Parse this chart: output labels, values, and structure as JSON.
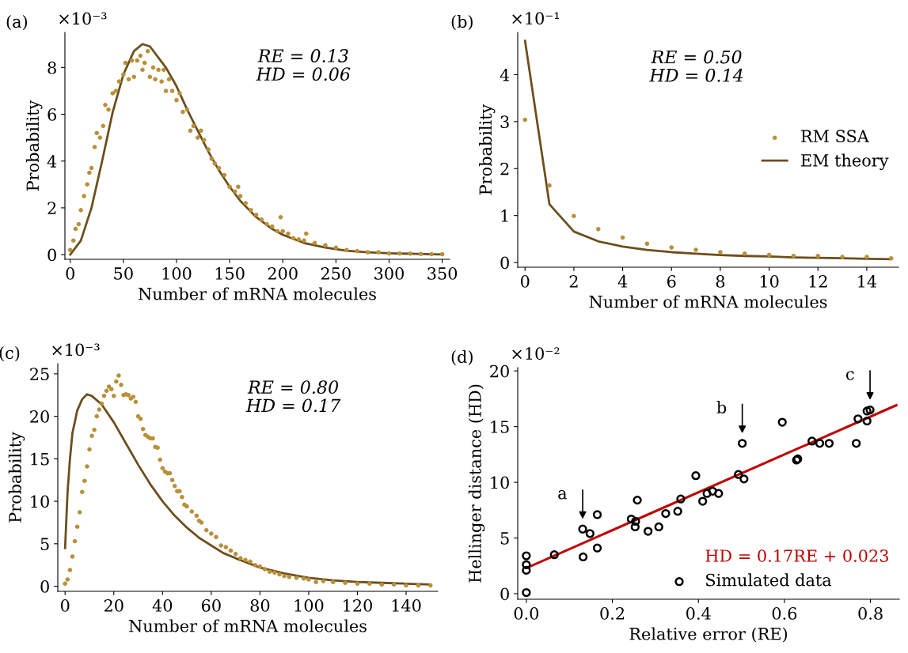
{
  "chart_data": [
    {
      "type": "scatter",
      "xlabel": "Number of mRNA molecules",
      "ylabel": "Probability",
      "annotations": [
        "(a)",
        "×10⁻³",
        "RE = 0.13\nHD = 0.06"
      ],
      "xlim": [
        -5,
        357
      ],
      "ylim": [
        -0.2,
        9.5
      ],
      "xticks": [
        0,
        50,
        100,
        150,
        200,
        250,
        300,
        350
      ],
      "yticks": [
        0,
        2,
        4,
        6,
        8
      ],
      "series": [
        {
          "marker": "circle",
          "color": "#b8903a",
          "x": [
            0,
            3,
            5,
            8,
            10,
            13,
            16,
            18,
            20,
            23,
            25,
            28,
            31,
            33,
            36,
            40,
            43,
            46,
            50,
            52,
            55,
            58,
            60,
            63,
            66,
            68,
            70,
            73,
            75,
            78,
            80,
            83,
            86,
            88,
            90,
            93,
            96,
            100,
            103,
            106,
            110,
            113,
            116,
            120,
            123,
            126,
            130,
            133,
            136,
            140,
            145,
            150,
            155,
            158,
            160,
            165,
            170,
            175,
            180,
            185,
            190,
            195,
            198,
            200,
            205,
            210,
            215,
            220,
            222,
            230,
            240,
            250,
            260,
            270,
            280,
            290,
            300,
            310,
            320,
            330,
            340,
            350
          ],
          "values": [
            0.2,
            0.6,
            1.1,
            1.3,
            1.9,
            2.5,
            3.0,
            3.5,
            3.7,
            4.6,
            5.2,
            5.0,
            5.5,
            6.4,
            6.2,
            6.9,
            7.0,
            7.4,
            7.7,
            8.2,
            7.5,
            8.3,
            7.6,
            8.3,
            8.5,
            7.9,
            8.2,
            8.7,
            7.6,
            8.0,
            7.5,
            7.9,
            7.4,
            7.9,
            7.0,
            7.5,
            7.0,
            6.6,
            6.9,
            6.1,
            6.2,
            5.3,
            5.5,
            5.0,
            5.3,
            4.9,
            4.5,
            4.1,
            3.9,
            3.7,
            3.4,
            2.9,
            2.7,
            2.9,
            2.5,
            2.2,
            1.9,
            1.7,
            1.5,
            1.3,
            1.2,
            1.0,
            1.6,
            1.0,
            0.9,
            0.7,
            0.65,
            0.6,
            0.9,
            0.5,
            0.4,
            0.3,
            0.2,
            0.15,
            0.1,
            0.1,
            0.05,
            0.05,
            0.04,
            0.03,
            0.02,
            0.02
          ]
        },
        {
          "type": "line",
          "color": "#6b4f1d",
          "x": [
            0,
            10,
            20,
            30,
            40,
            50,
            60,
            68,
            75,
            90,
            100,
            110,
            120,
            130,
            140,
            150,
            160,
            175,
            190,
            200,
            220,
            240,
            260,
            280,
            300,
            325,
            350
          ],
          "values": [
            0,
            0.6,
            2.0,
            4.0,
            6.1,
            7.7,
            8.7,
            9.0,
            8.9,
            8.0,
            7.2,
            6.2,
            5.3,
            4.4,
            3.6,
            2.9,
            2.3,
            1.6,
            1.1,
            0.85,
            0.5,
            0.3,
            0.17,
            0.1,
            0.06,
            0.03,
            0.01
          ]
        }
      ]
    },
    {
      "type": "scatter",
      "xlabel": "Number of mRNA molecules",
      "ylabel": "Probability",
      "annotations": [
        "(b)",
        "×10⁻¹",
        "RE = 0.50\nHD = 0.14"
      ],
      "xlim": [
        -0.3,
        15.3
      ],
      "ylim": [
        -0.1,
        4.9
      ],
      "xticks": [
        0,
        2,
        4,
        6,
        8,
        10,
        12,
        14
      ],
      "yticks": [
        0,
        1,
        2,
        3,
        4
      ],
      "legend": "right",
      "series": [
        {
          "marker": "circle",
          "name": "RM SSA",
          "color": "#b8903a",
          "x": [
            0,
            1,
            2,
            3,
            4,
            5,
            6,
            7,
            8,
            9,
            10,
            11,
            12,
            13,
            14,
            15
          ],
          "values": [
            3.04,
            1.64,
            0.99,
            0.71,
            0.53,
            0.4,
            0.32,
            0.27,
            0.22,
            0.19,
            0.16,
            0.14,
            0.14,
            0.12,
            0.12,
            0.09
          ]
        },
        {
          "type": "line",
          "name": "EM theory",
          "color": "#6b4f1d",
          "x": [
            0,
            1,
            2,
            3,
            4,
            5,
            6,
            7,
            8,
            9,
            10,
            11,
            12,
            13,
            14,
            15
          ],
          "values": [
            4.72,
            1.24,
            0.66,
            0.45,
            0.34,
            0.27,
            0.22,
            0.19,
            0.16,
            0.14,
            0.13,
            0.11,
            0.1,
            0.09,
            0.08,
            0.07
          ]
        }
      ]
    },
    {
      "type": "scatter",
      "xlabel": "Number of mRNA molecules",
      "ylabel": "Probability",
      "annotations": [
        "(c)",
        "×10⁻³",
        "RE = 0.80\nHD = 0.17"
      ],
      "xlim": [
        -3,
        153
      ],
      "ylim": [
        -0.6,
        26.2
      ],
      "xticks": [
        0,
        20,
        40,
        60,
        80,
        100,
        120,
        140
      ],
      "yticks": [
        0,
        5,
        10,
        15,
        20,
        25
      ],
      "series": [
        {
          "marker": "circle",
          "color": "#b8903a",
          "x": [
            0,
            1,
            2,
            3,
            4,
            5,
            6,
            7,
            8,
            9,
            10,
            11,
            12,
            13,
            14,
            15,
            16,
            17,
            18,
            19,
            20,
            21,
            22,
            23,
            24,
            25,
            26,
            27,
            28,
            29,
            30,
            31,
            32,
            33,
            34,
            35,
            36,
            37,
            38,
            39,
            40,
            41,
            42,
            43,
            44,
            45,
            46,
            47,
            48,
            49,
            50,
            52,
            54,
            55,
            56,
            58,
            60,
            62,
            64,
            66,
            68,
            70,
            72,
            74,
            76,
            78,
            80,
            82,
            84,
            86,
            88,
            90,
            92,
            95,
            98,
            100,
            103,
            106,
            110,
            115,
            120,
            125,
            130,
            135,
            140,
            145,
            150
          ],
          "values": [
            0.3,
            0.8,
            1.9,
            3.5,
            5.3,
            7.0,
            8.7,
            11.1,
            12.4,
            14.1,
            16.1,
            17.7,
            18.4,
            20.0,
            20.8,
            21.5,
            22.4,
            23.0,
            23.5,
            23.2,
            22.4,
            24.1,
            24.8,
            23.7,
            22.5,
            22.6,
            22.5,
            22.1,
            22.3,
            21.7,
            20.0,
            19.7,
            18.5,
            17.8,
            17.6,
            17.4,
            17.4,
            16.4,
            16.3,
            14.9,
            13.9,
            13.5,
            13.3,
            13.3,
            12.5,
            11.8,
            11.2,
            11.2,
            10.5,
            9.6,
            9.4,
            8.8,
            8.3,
            7.7,
            7.5,
            6.6,
            6.2,
            5.8,
            4.8,
            4.6,
            4.2,
            3.8,
            3.3,
            3.1,
            2.9,
            2.5,
            2.3,
            2.0,
            1.7,
            1.6,
            1.4,
            1.2,
            1.1,
            1.0,
            0.9,
            0.8,
            0.5,
            0.6,
            0.5,
            0.4,
            0.3,
            0.3,
            0.2,
            0.2,
            0.1,
            0.1,
            0.1
          ]
        },
        {
          "type": "line",
          "color": "#6b4f1d",
          "x": [
            0,
            1,
            2,
            3,
            5,
            7,
            9,
            11,
            15,
            20,
            25,
            30,
            35,
            40,
            45,
            50,
            55,
            60,
            65,
            70,
            80,
            90,
            100,
            110,
            120,
            130,
            140,
            150
          ],
          "values": [
            4.5,
            11,
            15,
            18,
            20.7,
            22.0,
            22.6,
            22.4,
            21.4,
            19.3,
            16.8,
            14.3,
            12.0,
            10.0,
            8.3,
            6.9,
            5.7,
            4.8,
            3.9,
            3.3,
            2.2,
            1.5,
            1.0,
            0.7,
            0.5,
            0.4,
            0.3,
            0.2
          ]
        }
      ]
    },
    {
      "type": "scatter",
      "xlabel": "Relative error (RE)",
      "ylabel": "Hellinger distance (HD)",
      "annotations": [
        "(d)",
        "×10⁻²",
        {
          "text": "a",
          "x": 0.131,
          "y": 5.8
        },
        {
          "text": "b",
          "x": 0.502,
          "y": 13.5
        },
        {
          "text": "c",
          "x": 0.799,
          "y": 16.5
        }
      ],
      "xlim": [
        -0.02,
        0.867
      ],
      "ylim": [
        -0.5,
        20.3
      ],
      "xticks": [
        {
          "value": 0,
          "label": "0.0"
        },
        0.2,
        0.4,
        0.6,
        0.8
      ],
      "yticks": [
        0,
        5,
        10,
        15,
        20
      ],
      "legend": "bottom right",
      "series": [
        {
          "type": "line",
          "name": "HD = 0.17RE + 0.023",
          "color": "#c00000",
          "x": [
            0,
            0.86
          ],
          "values": [
            2.3,
            16.92
          ]
        },
        {
          "marker": "circle",
          "name": "Simulated data",
          "color": "#000000",
          "x": [
            0,
            0,
            0,
            0,
            0.065,
            0.131,
            0.148,
            0.132,
            0.165,
            0.165,
            0.244,
            0.254,
            0.253,
            0.258,
            0.283,
            0.308,
            0.324,
            0.352,
            0.359,
            0.394,
            0.41,
            0.42,
            0.433,
            0.447,
            0.493,
            0.506,
            0.502,
            0.595,
            0.628,
            0.631,
            0.664,
            0.682,
            0.704,
            0.771,
            0.767,
            0.792,
            0.792,
            0.799
          ],
          "values": [
            3.4,
            2.6,
            2.1,
            0.1,
            3.5,
            5.8,
            5.4,
            3.3,
            7.1,
            4.1,
            6.7,
            6.5,
            6.0,
            8.4,
            5.6,
            6.0,
            7.2,
            7.4,
            8.5,
            10.6,
            8.3,
            9.0,
            9.2,
            9.0,
            10.7,
            10.3,
            13.5,
            15.4,
            12.0,
            12.1,
            13.7,
            13.5,
            13.5,
            15.7,
            13.5,
            15.5,
            16.4,
            16.5
          ]
        }
      ]
    }
  ]
}
